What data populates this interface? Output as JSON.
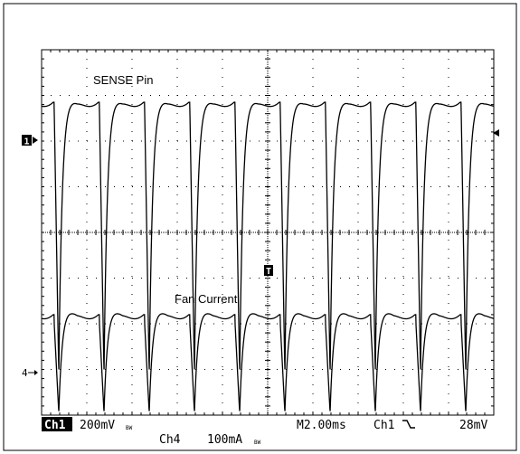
{
  "chart_data": {
    "type": "line",
    "title": "",
    "xlabel": "",
    "ylabel": "",
    "grid": true,
    "divisions": {
      "x": 10,
      "y": 8
    },
    "xlim": [
      0,
      10
    ],
    "ylim": [
      -4,
      4
    ],
    "time_per_div_ms": 2.0,
    "period_div": 1.0,
    "series": [
      {
        "name": "SENSE Pin",
        "channel": "Ch1",
        "scale": "200mV",
        "ground_marker": "1",
        "color": "#000000",
        "high_level_div": 2.85,
        "dip_level_div": -3.1,
        "baseline_div": 2.0
      },
      {
        "name": "Fan Current",
        "channel": "Ch4",
        "scale": "100mA",
        "ground_marker": "4",
        "color": "#000000",
        "high_level_div": -1.8,
        "dip_level_div": -3.95,
        "baseline_div": -3.15
      }
    ],
    "annotations": [
      {
        "text": "SENSE Pin"
      },
      {
        "text": "Fan Current"
      }
    ]
  },
  "readout": {
    "ch1_label": "Ch1",
    "ch1_scale": "200mV",
    "bw_mark": "BW",
    "ch4_label": "Ch4",
    "ch4_scale": "100mA",
    "timebase": "M2.00ms",
    "trigger_source": "Ch1",
    "trigger_slope": "\\",
    "trigger_level": "28mV"
  },
  "markers": {
    "ch1_ground": "1→",
    "ch4_ground": "4→",
    "trigger_pos": "T",
    "trigger_level_arrow": "←"
  }
}
